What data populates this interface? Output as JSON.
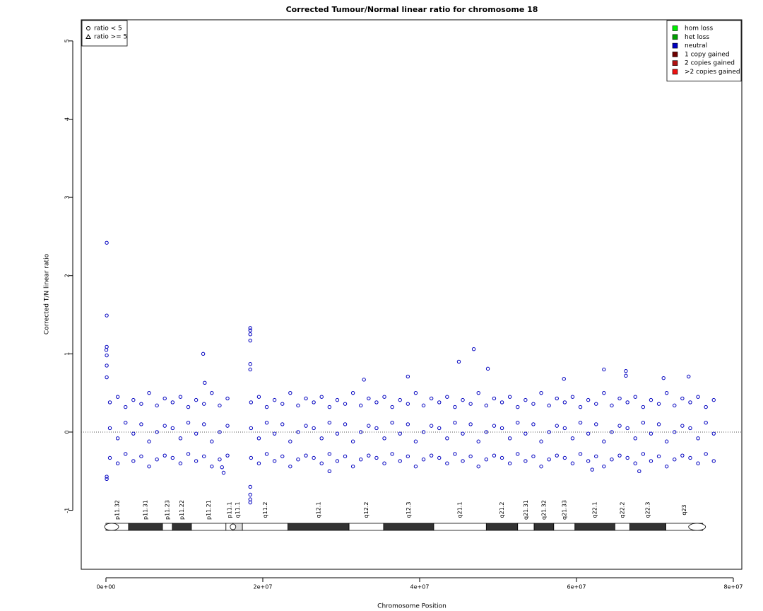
{
  "chart_data": {
    "type": "scatter",
    "title": "Corrected Tumour/Normal linear ratio for chromosome  18",
    "x_label": "Chromosome Position",
    "y_label": "Corrected T/N linear ratio",
    "xlim": [
      -3150000,
      81080000
    ],
    "ylim": [
      -1.754,
      5.27
    ],
    "xticks": [
      {
        "value": 0,
        "label": "0e+00"
      },
      {
        "value": 20000000,
        "label": "2e+07"
      },
      {
        "value": 40000000,
        "label": "4e+07"
      },
      {
        "value": 60000000,
        "label": "6e+07"
      },
      {
        "value": 80000000,
        "label": "8e+07"
      }
    ],
    "yticks": [
      -1,
      0,
      1,
      2,
      3,
      4,
      5
    ],
    "hline": 0,
    "shape_legend": [
      {
        "label": "ratio < 5",
        "shape": "circle"
      },
      {
        "label": "ratio >= 5",
        "shape": "triangle"
      }
    ],
    "legend_position": "top-right",
    "series": [
      {
        "name": "hom loss",
        "color": "#00ee00",
        "x": [],
        "values": []
      },
      {
        "name": "het loss",
        "color": "#00a000",
        "x": [],
        "values": []
      },
      {
        "name": "neutral",
        "color": "#0000c0",
        "x": [
          100000.0,
          100000.0,
          100000.0,
          50000.0,
          100000.0,
          100000.0,
          100000.0,
          100000.0,
          100000.0,
          12400000.0,
          12600000.0,
          18400000.0,
          18400000.0,
          18400000.0,
          18400000.0,
          18400000.0,
          18400000.0,
          18400000.0,
          18400000.0,
          18400000.0,
          18400000.0,
          45000000.0,
          46900000.0,
          48700000.0,
          38500000.0,
          32900000.0,
          63500000.0,
          66300000.0,
          66300000.0,
          71100000.0,
          74300000.0,
          58400000.0,
          28500000.0,
          68000000.0,
          62000000.0,
          15000000.0,
          14800000.0,
          500000.0,
          500000.0,
          500000.0,
          1500000.0,
          1500000.0,
          1500000.0,
          2500000.0,
          2500000.0,
          2500000.0,
          3500000.0,
          3500000.0,
          3500000.0,
          4500000.0,
          4500000.0,
          4500000.0,
          5500000.0,
          5500000.0,
          5500000.0,
          6500000.0,
          6500000.0,
          6500000.0,
          7500000.0,
          7500000.0,
          7500000.0,
          8500000.0,
          8500000.0,
          8500000.0,
          9500000.0,
          9500000.0,
          9500000.0,
          10500000.0,
          10500000.0,
          10500000.0,
          11500000.0,
          11500000.0,
          11500000.0,
          12500000.0,
          12500000.0,
          12500000.0,
          13500000.0,
          13500000.0,
          13500000.0,
          14500000.0,
          14500000.0,
          14500000.0,
          15500000.0,
          15500000.0,
          15500000.0,
          18500000.0,
          18500000.0,
          18500000.0,
          19500000.0,
          19500000.0,
          19500000.0,
          20500000.0,
          20500000.0,
          20500000.0,
          21500000.0,
          21500000.0,
          21500000.0,
          22500000.0,
          22500000.0,
          22500000.0,
          23500000.0,
          23500000.0,
          23500000.0,
          24500000.0,
          24500000.0,
          24500000.0,
          25500000.0,
          25500000.0,
          25500000.0,
          26500000.0,
          26500000.0,
          26500000.0,
          27500000.0,
          27500000.0,
          27500000.0,
          28500000.0,
          28500000.0,
          28500000.0,
          29500000.0,
          29500000.0,
          29500000.0,
          30500000.0,
          30500000.0,
          30500000.0,
          31500000.0,
          31500000.0,
          31500000.0,
          32500000.0,
          32500000.0,
          32500000.0,
          33500000.0,
          33500000.0,
          33500000.0,
          34500000.0,
          34500000.0,
          34500000.0,
          35500000.0,
          35500000.0,
          35500000.0,
          36500000.0,
          36500000.0,
          36500000.0,
          37500000.0,
          37500000.0,
          37500000.0,
          38500000.0,
          38500000.0,
          38500000.0,
          39500000.0,
          39500000.0,
          39500000.0,
          40500000.0,
          40500000.0,
          40500000.0,
          41500000.0,
          41500000.0,
          41500000.0,
          42500000.0,
          42500000.0,
          42500000.0,
          43500000.0,
          43500000.0,
          43500000.0,
          44500000.0,
          44500000.0,
          44500000.0,
          45500000.0,
          45500000.0,
          45500000.0,
          46500000.0,
          46500000.0,
          46500000.0,
          47500000.0,
          47500000.0,
          47500000.0,
          48500000.0,
          48500000.0,
          48500000.0,
          49500000.0,
          49500000.0,
          49500000.0,
          50500000.0,
          50500000.0,
          50500000.0,
          51500000.0,
          51500000.0,
          51500000.0,
          52500000.0,
          52500000.0,
          52500000.0,
          53500000.0,
          53500000.0,
          53500000.0,
          54500000.0,
          54500000.0,
          54500000.0,
          55500000.0,
          55500000.0,
          55500000.0,
          56500000.0,
          56500000.0,
          56500000.0,
          57500000.0,
          57500000.0,
          57500000.0,
          58500000.0,
          58500000.0,
          58500000.0,
          59500000.0,
          59500000.0,
          59500000.0,
          60500000.0,
          60500000.0,
          60500000.0,
          61500000.0,
          61500000.0,
          61500000.0,
          62500000.0,
          62500000.0,
          62500000.0,
          63500000.0,
          63500000.0,
          63500000.0,
          64500000.0,
          64500000.0,
          64500000.0,
          65500000.0,
          65500000.0,
          65500000.0,
          66500000.0,
          66500000.0,
          66500000.0,
          67500000.0,
          67500000.0,
          67500000.0,
          68500000.0,
          68500000.0,
          68500000.0,
          69500000.0,
          69500000.0,
          69500000.0,
          70500000.0,
          70500000.0,
          70500000.0,
          71500000.0,
          71500000.0,
          71500000.0,
          72500000.0,
          72500000.0,
          72500000.0,
          73500000.0,
          73500000.0,
          73500000.0,
          74500000.0,
          74500000.0,
          74500000.0,
          75500000.0,
          75500000.0,
          75500000.0,
          76500000.0,
          76500000.0,
          76500000.0,
          77500000.0,
          77500000.0,
          77500000.0
        ],
        "values": [
          2.42,
          1.49,
          1.09,
          1.05,
          0.98,
          0.85,
          0.7,
          -0.57,
          -0.6,
          1.0,
          0.63,
          1.33,
          1.3,
          1.25,
          1.17,
          0.87,
          0.8,
          -0.7,
          -0.8,
          -0.86,
          -0.9,
          0.9,
          1.06,
          0.81,
          0.71,
          0.67,
          0.8,
          0.78,
          0.72,
          0.69,
          0.71,
          0.68,
          -0.5,
          -0.5,
          -0.48,
          -0.52,
          -0.45,
          0.38,
          0.05,
          -0.33,
          0.45,
          -0.08,
          -0.4,
          0.32,
          0.12,
          -0.28,
          0.41,
          -0.02,
          -0.37,
          0.36,
          0.1,
          -0.31,
          0.5,
          -0.12,
          -0.44,
          0.34,
          0,
          -0.35,
          0.43,
          0.08,
          -0.3,
          0.38,
          0.05,
          -0.33,
          0.45,
          -0.08,
          -0.4,
          0.32,
          0.12,
          -0.28,
          0.41,
          -0.02,
          -0.37,
          0.36,
          0.1,
          -0.31,
          0.5,
          -0.12,
          -0.44,
          0.34,
          0,
          -0.35,
          0.43,
          0.08,
          -0.3,
          0.38,
          0.05,
          -0.33,
          0.45,
          -0.08,
          -0.4,
          0.32,
          0.12,
          -0.28,
          0.41,
          -0.02,
          -0.37,
          0.36,
          0.1,
          -0.31,
          0.5,
          -0.12,
          -0.44,
          0.34,
          0,
          -0.35,
          0.43,
          0.08,
          -0.3,
          0.38,
          0.05,
          -0.33,
          0.45,
          -0.08,
          -0.4,
          0.32,
          0.12,
          -0.28,
          0.41,
          -0.02,
          -0.37,
          0.36,
          0.1,
          -0.31,
          0.5,
          -0.12,
          -0.44,
          0.34,
          0,
          -0.35,
          0.43,
          0.08,
          -0.3,
          0.38,
          0.05,
          -0.33,
          0.45,
          -0.08,
          -0.4,
          0.32,
          0.12,
          -0.28,
          0.41,
          -0.02,
          -0.37,
          0.36,
          0.1,
          -0.31,
          0.5,
          -0.12,
          -0.44,
          0.34,
          0,
          -0.35,
          0.43,
          0.08,
          -0.3,
          0.38,
          0.05,
          -0.33,
          0.45,
          -0.08,
          -0.4,
          0.32,
          0.12,
          -0.28,
          0.41,
          -0.02,
          -0.37,
          0.36,
          0.1,
          -0.31,
          0.5,
          -0.12,
          -0.44,
          0.34,
          0,
          -0.35,
          0.43,
          0.08,
          -0.3,
          0.38,
          0.05,
          -0.33,
          0.45,
          -0.08,
          -0.4,
          0.32,
          0.12,
          -0.28,
          0.41,
          -0.02,
          -0.37,
          0.36,
          0.1,
          -0.31,
          0.5,
          -0.12,
          -0.44,
          0.34,
          0,
          -0.35,
          0.43,
          0.08,
          -0.3,
          0.38,
          0.05,
          -0.33,
          0.45,
          -0.08,
          -0.4,
          0.32,
          0.12,
          -0.28,
          0.41,
          -0.02,
          -0.37,
          0.36,
          0.1,
          -0.31,
          0.5,
          -0.12,
          -0.44,
          0.34,
          0,
          -0.35,
          0.43,
          0.08,
          -0.3,
          0.38,
          0.05,
          -0.33,
          0.45,
          -0.08,
          -0.4,
          0.32,
          0.12,
          -0.28,
          0.41,
          -0.02,
          -0.37,
          0.36,
          0.1,
          -0.31,
          0.5,
          -0.12,
          -0.44,
          0.34,
          0,
          -0.35,
          0.43,
          0.08,
          -0.3,
          0.38,
          0.05,
          -0.33,
          0.45,
          -0.08,
          -0.4,
          0.32,
          0.12,
          -0.28,
          0.41,
          -0.02,
          -0.37
        ]
      },
      {
        "name": "1 copy gained",
        "color": "#6e0000",
        "x": [],
        "values": []
      },
      {
        "name": "2 copies gained",
        "color": "#b01010",
        "x": [],
        "values": []
      },
      {
        "name": ">2 copies gained",
        "color": "#ee1010",
        "x": [],
        "values": []
      }
    ],
    "ideogram": [
      {
        "label": "p11.32",
        "start": 0,
        "end": 2880000,
        "color": "#ffffff"
      },
      {
        "label": "p11.31",
        "start": 2880000,
        "end": 7210000,
        "color": "#333333"
      },
      {
        "label": "p11.23",
        "start": 7210000,
        "end": 8470000,
        "color": "#ffffff"
      },
      {
        "label": "p11.22",
        "start": 8470000,
        "end": 10900000,
        "color": "#333333"
      },
      {
        "label": "p11.21",
        "start": 10900000,
        "end": 15300000,
        "color": "#ffffff"
      },
      {
        "label": "p11.1",
        "start": 15300000,
        "end": 16200000,
        "color": "#ffffff"
      },
      {
        "label": "q11.1",
        "start": 16200000,
        "end": 17400000,
        "color": "#dddddd"
      },
      {
        "label": "q11.2",
        "start": 17400000,
        "end": 23200000,
        "color": "#ffffff"
      },
      {
        "label": "q12.1",
        "start": 23200000,
        "end": 31000000,
        "color": "#333333"
      },
      {
        "label": "q12.2",
        "start": 31000000,
        "end": 35400000,
        "color": "#ffffff"
      },
      {
        "label": "q12.3",
        "start": 35400000,
        "end": 41800000,
        "color": "#333333"
      },
      {
        "label": "q21.1",
        "start": 41800000,
        "end": 48500000,
        "color": "#ffffff"
      },
      {
        "label": "q21.2",
        "start": 48500000,
        "end": 52500000,
        "color": "#333333"
      },
      {
        "label": "q21.31",
        "start": 52500000,
        "end": 54600000,
        "color": "#ffffff"
      },
      {
        "label": "q21.32",
        "start": 54600000,
        "end": 57100000,
        "color": "#333333"
      },
      {
        "label": "q21.33",
        "start": 57100000,
        "end": 59800000,
        "color": "#ffffff"
      },
      {
        "label": "q22.1",
        "start": 59800000,
        "end": 64900000,
        "color": "#333333"
      },
      {
        "label": "q22.2",
        "start": 64900000,
        "end": 66800000,
        "color": "#ffffff"
      },
      {
        "label": "q22.3",
        "start": 66800000,
        "end": 71400000,
        "color": "#333333"
      },
      {
        "label": "q23",
        "start": 71400000,
        "end": 76100000,
        "color": "#ffffff"
      }
    ]
  }
}
